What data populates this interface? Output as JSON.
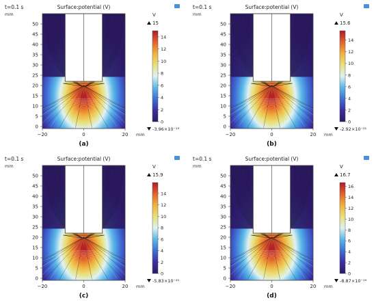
{
  "chart_data": [
    {
      "type": "heatmap",
      "panel_label": "(a)",
      "time_label": "t=0.1 s",
      "title": "Surface:potential (V)",
      "x_unit": "mm",
      "y_unit": "mm",
      "x_ticks": [
        -20,
        0,
        20
      ],
      "y_ticks": [
        0,
        5,
        10,
        15,
        20,
        25,
        30,
        35,
        40,
        45,
        50
      ],
      "xlim": [
        -20,
        20
      ],
      "ylim": [
        -1,
        55
      ],
      "colorbar": {
        "unit": "V",
        "max_label": "15",
        "min_label": "-3.96×10⁻¹⁹",
        "ticks": [
          0,
          2,
          4,
          6,
          8,
          10,
          12,
          14
        ],
        "range": [
          0,
          15
        ]
      }
    },
    {
      "type": "heatmap",
      "panel_label": "(b)",
      "time_label": "t=0.1 s",
      "title": "Surface:potential (V)",
      "x_unit": "mm",
      "y_unit": "mm",
      "x_ticks": [
        -20,
        0,
        20
      ],
      "y_ticks": [
        0,
        5,
        10,
        15,
        20,
        25,
        30,
        35,
        40,
        45,
        50
      ],
      "xlim": [
        -20,
        20
      ],
      "ylim": [
        -1,
        55
      ],
      "colorbar": {
        "unit": "V",
        "max_label": "15.6",
        "min_label": "-2.92×10⁻²¹",
        "ticks": [
          0,
          2,
          4,
          6,
          8,
          10,
          12,
          14
        ],
        "range": [
          0,
          15.6
        ]
      }
    },
    {
      "type": "heatmap",
      "panel_label": "(c)",
      "time_label": "t=0.1 s",
      "title": "Surface:potential (V)",
      "x_unit": "mm",
      "y_unit": "mm",
      "x_ticks": [
        -20,
        0,
        20
      ],
      "y_ticks": [
        0,
        5,
        10,
        15,
        20,
        25,
        30,
        35,
        40,
        45,
        50
      ],
      "xlim": [
        -20,
        20
      ],
      "ylim": [
        -1,
        55
      ],
      "colorbar": {
        "unit": "V",
        "max_label": "15.9",
        "min_label": "-5.83×10⁻²¹",
        "ticks": [
          0,
          2,
          4,
          6,
          8,
          10,
          12,
          14
        ],
        "range": [
          0,
          15.9
        ]
      }
    },
    {
      "type": "heatmap",
      "panel_label": "(d)",
      "time_label": "t=0.1 s",
      "title": "Surface:potential (V)",
      "x_unit": "mm",
      "y_unit": "mm",
      "x_ticks": [
        -20,
        0,
        20
      ],
      "y_ticks": [
        0,
        5,
        10,
        15,
        20,
        25,
        30,
        35,
        40,
        45,
        50
      ],
      "xlim": [
        -20,
        20
      ],
      "ylim": [
        -1,
        55
      ],
      "colorbar": {
        "unit": "V",
        "max_label": "16.7",
        "min_label": "-8.87×10⁻¹⁹",
        "ticks": [
          0,
          2,
          4,
          6,
          8,
          10,
          12,
          14,
          16
        ],
        "range": [
          0,
          16.7
        ]
      }
    }
  ],
  "colormap": [
    "#2b1a63",
    "#3b2f9f",
    "#3f6fd6",
    "#5ab8e8",
    "#dff1f2",
    "#e8e07a",
    "#f0b23d",
    "#e2622b",
    "#b1182b"
  ]
}
